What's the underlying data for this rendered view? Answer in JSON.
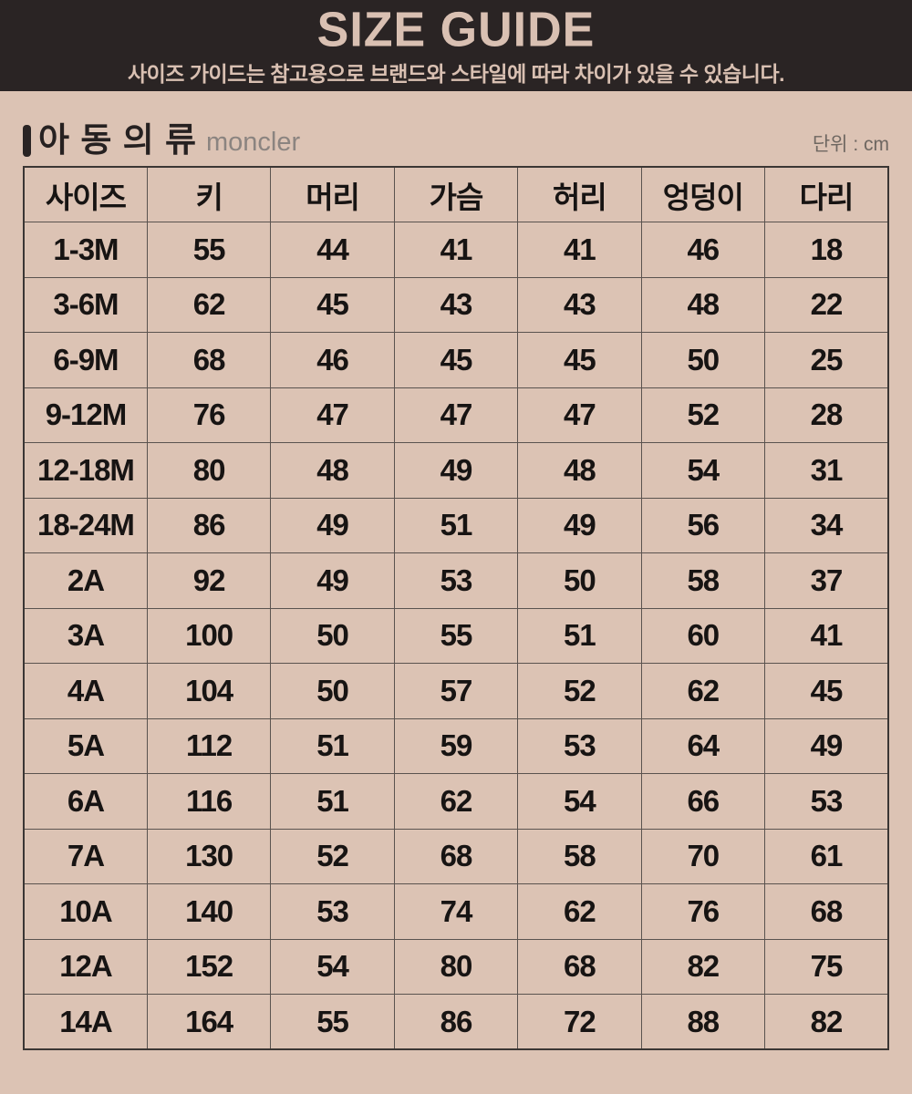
{
  "banner": {
    "title": "SIZE GUIDE",
    "subtitle": "사이즈 가이드는 참고용으로 브랜드와 스타일에 따라 차이가 있을 수 있습니다."
  },
  "section": {
    "title": "아 동 의 류",
    "brand": "moncler",
    "unit": "단위 : cm"
  },
  "table": {
    "columns": [
      "사이즈",
      "키",
      "머리",
      "가슴",
      "허리",
      "엉덩이",
      "다리"
    ],
    "rows": [
      [
        "1-3M",
        "55",
        "44",
        "41",
        "41",
        "46",
        "18"
      ],
      [
        "3-6M",
        "62",
        "45",
        "43",
        "43",
        "48",
        "22"
      ],
      [
        "6-9M",
        "68",
        "46",
        "45",
        "45",
        "50",
        "25"
      ],
      [
        "9-12M",
        "76",
        "47",
        "47",
        "47",
        "52",
        "28"
      ],
      [
        "12-18M",
        "80",
        "48",
        "49",
        "48",
        "54",
        "31"
      ],
      [
        "18-24M",
        "86",
        "49",
        "51",
        "49",
        "56",
        "34"
      ],
      [
        "2A",
        "92",
        "49",
        "53",
        "50",
        "58",
        "37"
      ],
      [
        "3A",
        "100",
        "50",
        "55",
        "51",
        "60",
        "41"
      ],
      [
        "4A",
        "104",
        "50",
        "57",
        "52",
        "62",
        "45"
      ],
      [
        "5A",
        "112",
        "51",
        "59",
        "53",
        "64",
        "49"
      ],
      [
        "6A",
        "116",
        "51",
        "62",
        "54",
        "66",
        "53"
      ],
      [
        "7A",
        "130",
        "52",
        "68",
        "58",
        "70",
        "61"
      ],
      [
        "10A",
        "140",
        "53",
        "74",
        "62",
        "76",
        "68"
      ],
      [
        "12A",
        "152",
        "54",
        "80",
        "68",
        "82",
        "75"
      ],
      [
        "14A",
        "164",
        "55",
        "86",
        "72",
        "88",
        "82"
      ]
    ]
  },
  "colors": {
    "page_bg": "#dcc3b4",
    "banner_bg": "#2a2424",
    "banner_text": "#d9c0b2",
    "grid_line": "#5a534f",
    "grid_outer": "#3b3634",
    "text_dark": "#171413",
    "muted": "#8b8480",
    "muted_dark": "#6e6761"
  }
}
